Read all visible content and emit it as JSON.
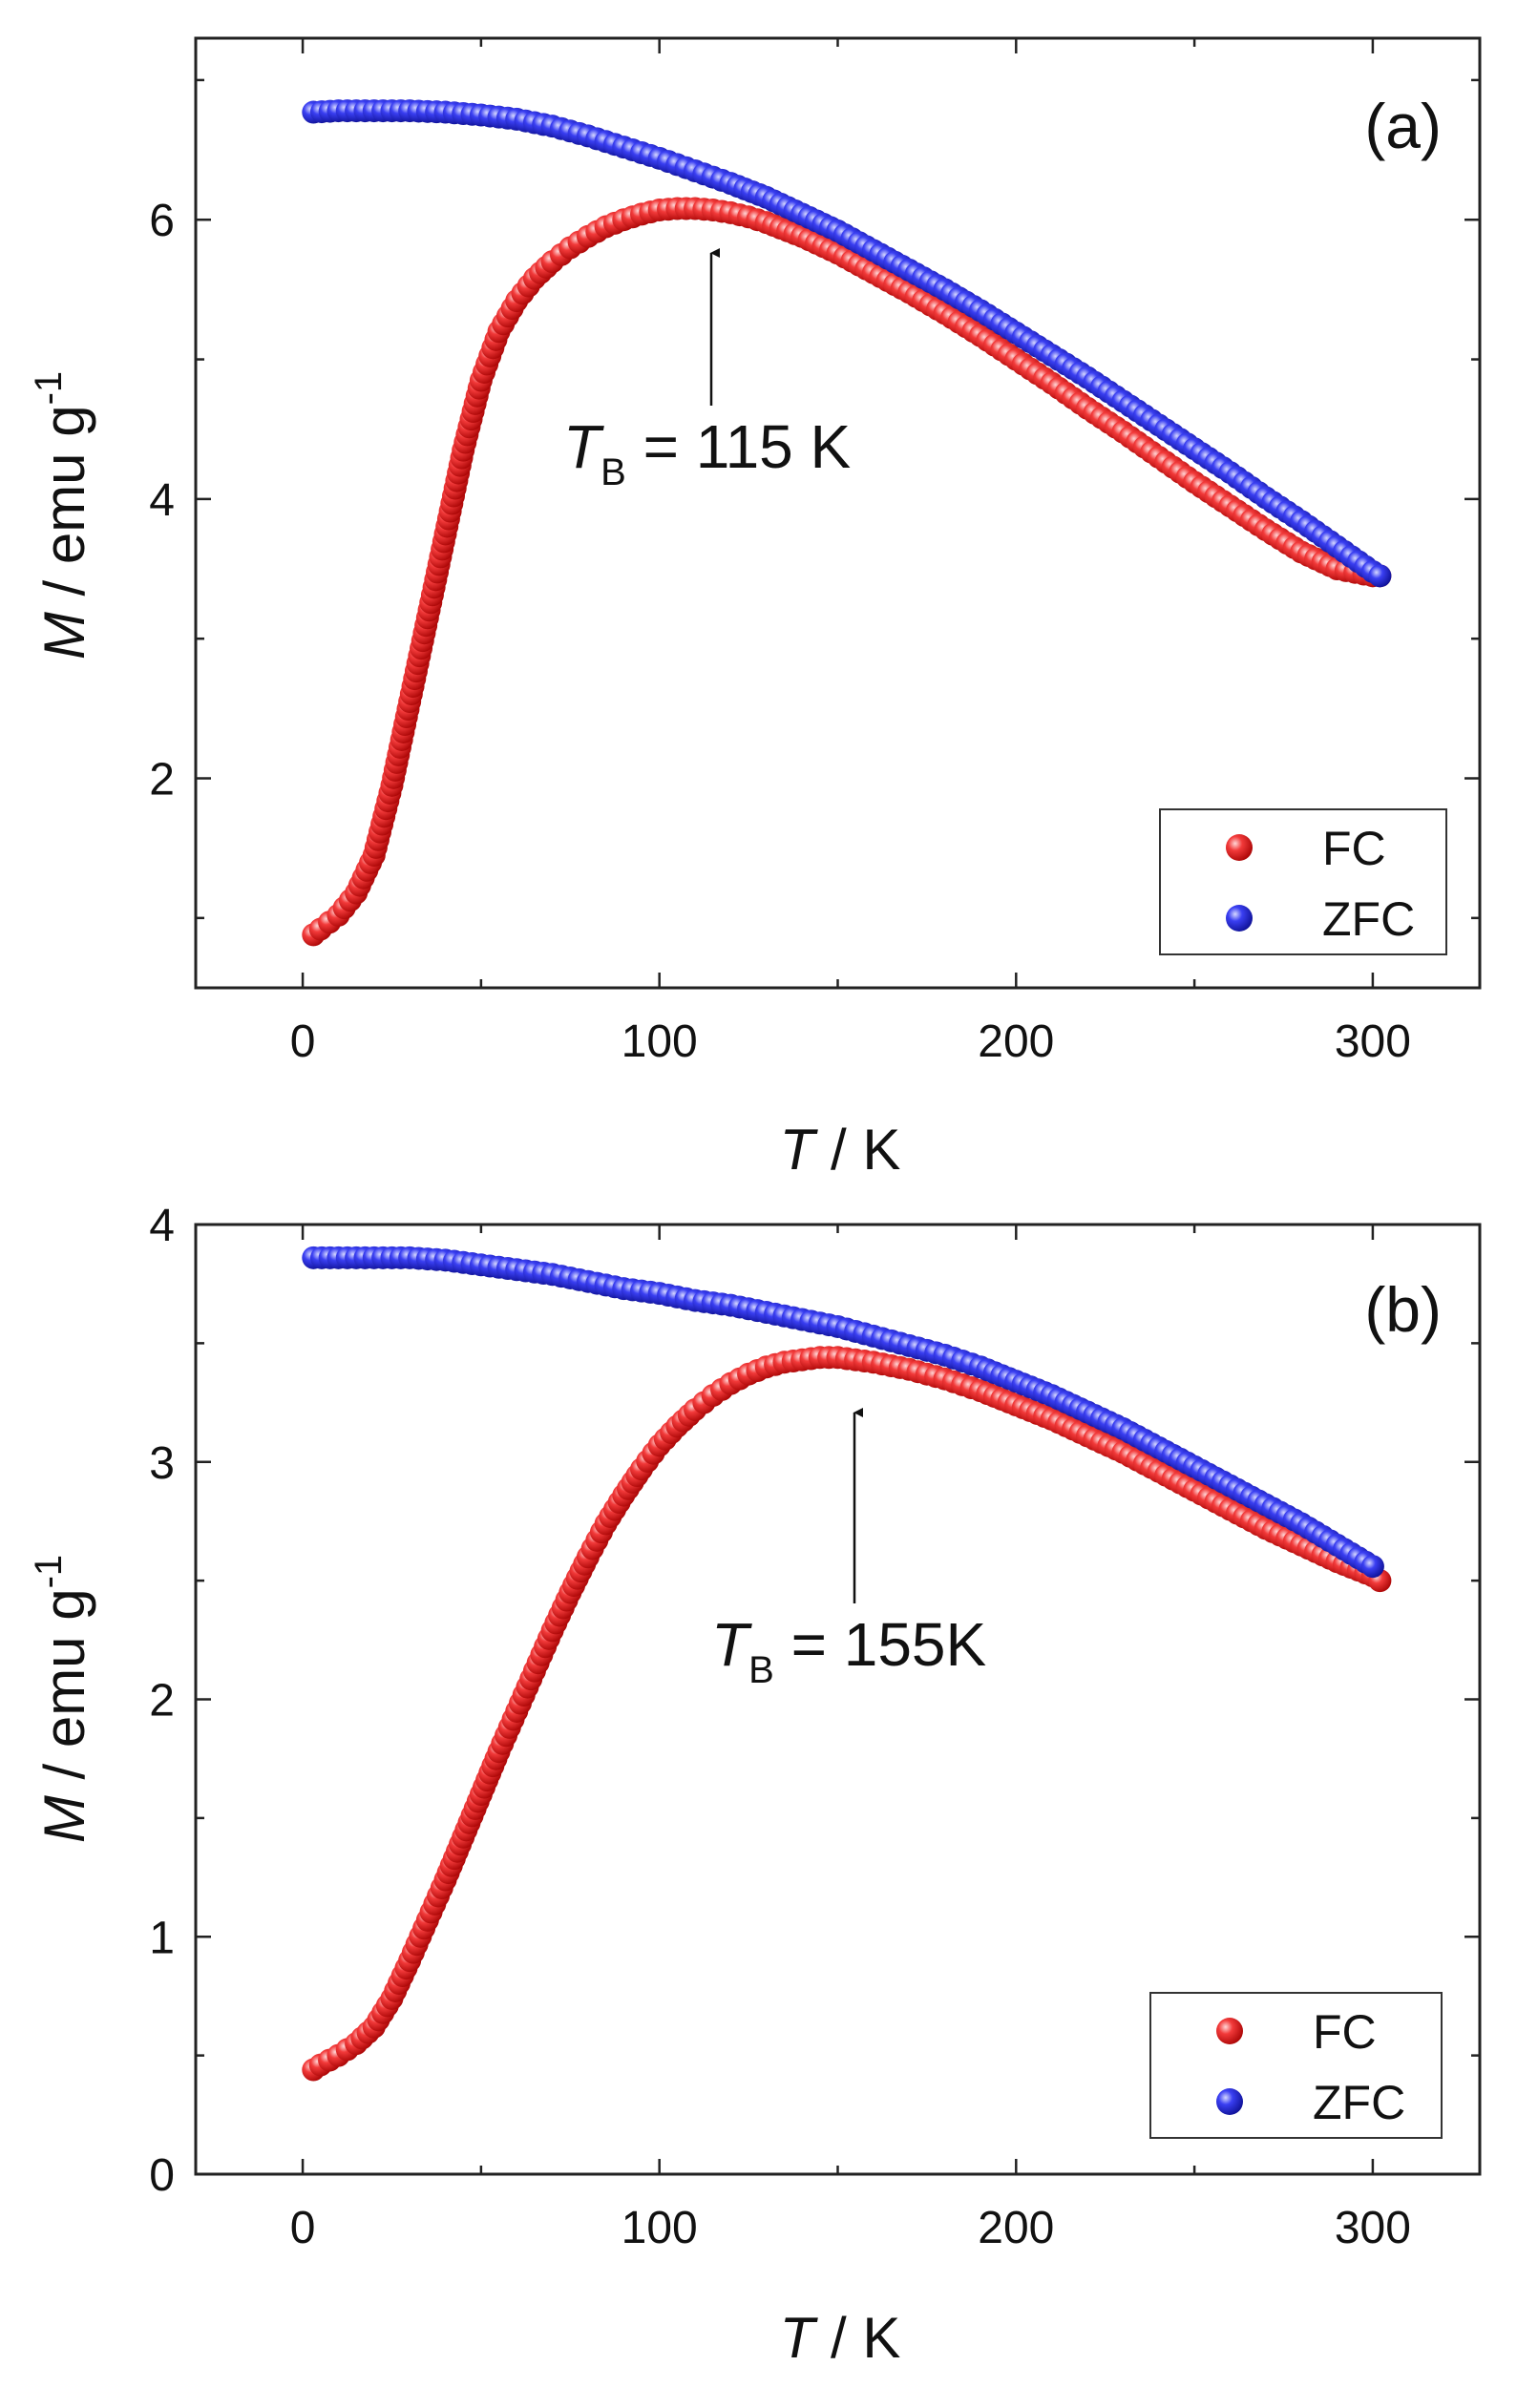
{
  "chart_data": [
    {
      "type": "scatter",
      "panel_label": "(a)",
      "xlabel": {
        "symbol": "T",
        "unit": " / K"
      },
      "ylabel": {
        "symbol": "M",
        "unit": " / emu g",
        "exp": "-1"
      },
      "xlim": [
        -30,
        330
      ],
      "ylim": [
        0.5,
        7.3
      ],
      "xticks": [
        0,
        100,
        200,
        300
      ],
      "yticks": [
        2,
        4,
        6
      ],
      "xtick_labels": [
        "0",
        "100",
        "200",
        "300"
      ],
      "ytick_labels": [
        "2",
        "4",
        "6"
      ],
      "legend_position": "bottom-right",
      "annotation": {
        "symbol": "T",
        "sub": "B",
        "text": " = 115 K",
        "x": 115,
        "y": 6.05
      },
      "series": [
        {
          "name": "FC",
          "color": "#e8141b",
          "x": [
            3,
            5,
            10,
            15,
            20,
            25,
            30,
            35,
            40,
            45,
            50,
            55,
            60,
            65,
            70,
            75,
            80,
            85,
            90,
            95,
            100,
            105,
            110,
            115,
            120,
            125,
            130,
            140,
            150,
            160,
            170,
            180,
            190,
            200,
            210,
            220,
            230,
            240,
            250,
            260,
            270,
            280,
            290,
            300,
            302
          ],
          "y": [
            0.88,
            0.92,
            1.02,
            1.18,
            1.45,
            1.95,
            2.55,
            3.15,
            3.75,
            4.35,
            4.85,
            5.2,
            5.42,
            5.58,
            5.7,
            5.8,
            5.88,
            5.95,
            6.0,
            6.04,
            6.07,
            6.08,
            6.08,
            6.07,
            6.05,
            6.02,
            5.98,
            5.88,
            5.76,
            5.62,
            5.48,
            5.33,
            5.17,
            5.0,
            4.83,
            4.65,
            4.48,
            4.3,
            4.12,
            3.95,
            3.78,
            3.62,
            3.5,
            3.45,
            3.45
          ]
        },
        {
          "name": "ZFC",
          "color": "#1c22d6",
          "x": [
            3,
            10,
            20,
            30,
            40,
            50,
            60,
            70,
            80,
            90,
            100,
            110,
            120,
            130,
            140,
            150,
            160,
            170,
            180,
            190,
            200,
            210,
            220,
            230,
            240,
            250,
            260,
            270,
            280,
            290,
            300,
            302
          ],
          "y": [
            6.77,
            6.78,
            6.78,
            6.78,
            6.77,
            6.75,
            6.72,
            6.67,
            6.6,
            6.52,
            6.44,
            6.35,
            6.26,
            6.16,
            6.04,
            5.92,
            5.78,
            5.64,
            5.5,
            5.35,
            5.19,
            5.03,
            4.87,
            4.7,
            4.53,
            4.36,
            4.19,
            4.01,
            3.84,
            3.66,
            3.48,
            3.45
          ]
        }
      ]
    },
    {
      "type": "scatter",
      "panel_label": "(b)",
      "xlabel": {
        "symbol": "T",
        "unit": " / K"
      },
      "ylabel": {
        "symbol": "M",
        "unit": " / emu g",
        "exp": "-1"
      },
      "xlim": [
        -30,
        330
      ],
      "ylim": [
        0,
        4
      ],
      "xticks": [
        0,
        100,
        200,
        300
      ],
      "yticks": [
        0,
        1,
        2,
        3,
        4
      ],
      "xtick_labels": [
        "0",
        "100",
        "200",
        "300"
      ],
      "ytick_labels": [
        "0",
        "1",
        "2",
        "3",
        "4"
      ],
      "legend_position": "bottom-right",
      "annotation": {
        "symbol": "T",
        "sub": "B",
        "text": " = 155K",
        "x": 155,
        "y": 3.42
      },
      "series": [
        {
          "name": "FC",
          "color": "#e8141b",
          "x": [
            3,
            5,
            10,
            15,
            20,
            25,
            30,
            35,
            40,
            45,
            50,
            55,
            60,
            65,
            70,
            75,
            80,
            85,
            90,
            95,
            100,
            105,
            110,
            115,
            120,
            125,
            130,
            135,
            140,
            145,
            150,
            155,
            160,
            170,
            180,
            190,
            200,
            210,
            220,
            230,
            240,
            250,
            260,
            270,
            280,
            290,
            300,
            302
          ],
          "y": [
            0.44,
            0.46,
            0.5,
            0.55,
            0.62,
            0.74,
            0.9,
            1.07,
            1.24,
            1.42,
            1.6,
            1.78,
            1.95,
            2.12,
            2.29,
            2.45,
            2.6,
            2.74,
            2.86,
            2.97,
            3.07,
            3.15,
            3.22,
            3.28,
            3.33,
            3.37,
            3.4,
            3.42,
            3.43,
            3.44,
            3.44,
            3.43,
            3.42,
            3.39,
            3.35,
            3.3,
            3.24,
            3.18,
            3.11,
            3.04,
            2.96,
            2.88,
            2.8,
            2.72,
            2.65,
            2.58,
            2.52,
            2.5
          ]
        },
        {
          "name": "ZFC",
          "color": "#1c22d6",
          "x": [
            3,
            10,
            20,
            30,
            40,
            50,
            60,
            70,
            80,
            90,
            100,
            110,
            120,
            130,
            140,
            150,
            160,
            170,
            180,
            190,
            200,
            210,
            220,
            230,
            240,
            250,
            260,
            270,
            280,
            290,
            300
          ],
          "y": [
            3.86,
            3.86,
            3.86,
            3.86,
            3.85,
            3.83,
            3.81,
            3.79,
            3.76,
            3.73,
            3.71,
            3.68,
            3.66,
            3.63,
            3.6,
            3.57,
            3.53,
            3.49,
            3.45,
            3.4,
            3.34,
            3.28,
            3.21,
            3.14,
            3.06,
            2.98,
            2.9,
            2.82,
            2.74,
            2.65,
            2.56
          ]
        }
      ]
    }
  ]
}
